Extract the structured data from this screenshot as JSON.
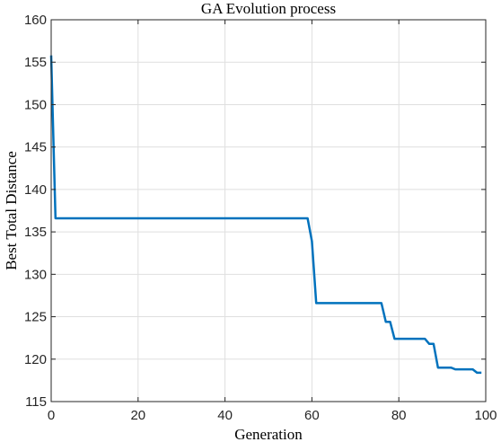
{
  "chart_data": {
    "type": "line",
    "title": "GA Evolution process",
    "xlabel": "Generation",
    "ylabel": "Best Total Distance",
    "xlim": [
      0,
      100
    ],
    "ylim": [
      115,
      160
    ],
    "xticks": [
      0,
      20,
      40,
      60,
      80,
      100
    ],
    "yticks": [
      115,
      120,
      125,
      130,
      135,
      140,
      145,
      150,
      155,
      160
    ],
    "grid": true,
    "series": [
      {
        "color": "#0072bd",
        "x": [
          0,
          1,
          2,
          59,
          60,
          61,
          62,
          76,
          77,
          78,
          79,
          86,
          87,
          88,
          89,
          92,
          93,
          97,
          98,
          99
        ],
        "y": [
          155.8,
          136.6,
          136.6,
          136.6,
          133.9,
          126.6,
          126.6,
          126.6,
          124.4,
          124.4,
          122.4,
          122.4,
          121.8,
          121.8,
          119.0,
          119.0,
          118.8,
          118.8,
          118.4,
          118.4
        ]
      }
    ]
  }
}
